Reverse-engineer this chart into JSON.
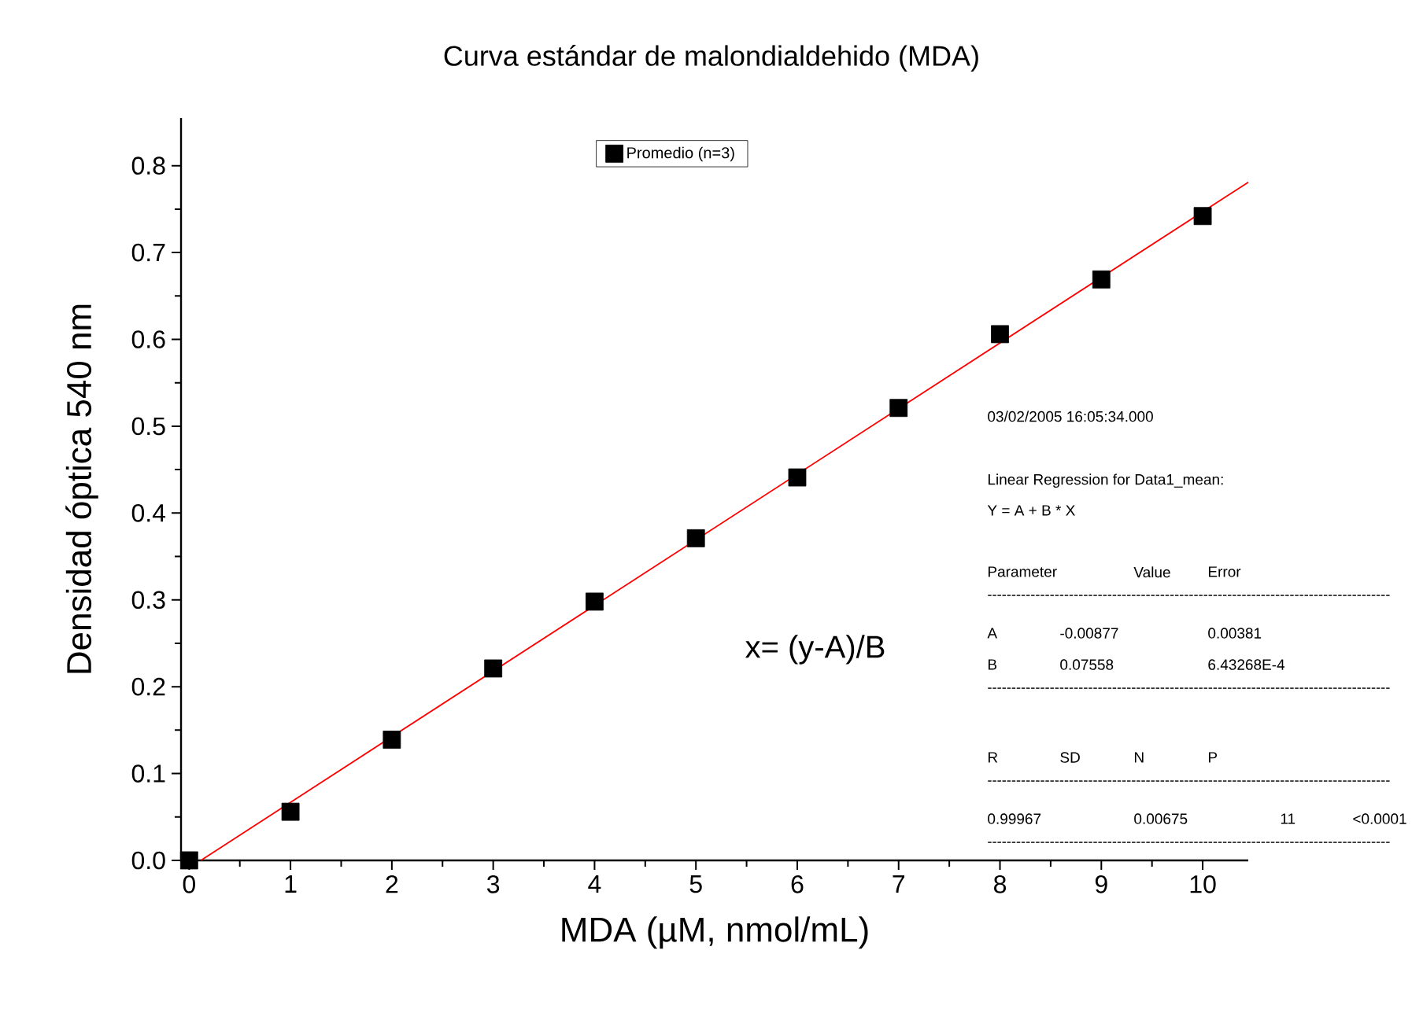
{
  "chart_data": {
    "type": "scatter",
    "title": "Curva estándar de malondialdehido (MDA)",
    "xlabel": "MDA (µM, nmol/mL)",
    "ylabel": "Densidad óptica 540 nm",
    "x": [
      0,
      1,
      2,
      3,
      4,
      5,
      6,
      7,
      8,
      9,
      10
    ],
    "series": [
      {
        "name": "Promedio (n=3)",
        "color": "#000000",
        "marker": "square",
        "values": [
          0,
          0.056,
          0.139,
          0.221,
          0.298,
          0.371,
          0.441,
          0.521,
          0.606,
          0.669,
          0.742
        ]
      },
      {
        "type": "line",
        "color": "#ff0000",
        "line_style": "solid",
        "x": [
          0.116,
          10.45
        ],
        "values": [
          0,
          0.781
        ]
      }
    ],
    "xlim": [
      -0.08,
      10.45
    ],
    "ylim": [
      0,
      0.855
    ],
    "xticks": [
      0,
      1,
      2,
      3,
      4,
      5,
      6,
      7,
      8,
      9,
      10
    ],
    "yticks": [
      {
        "value": 0,
        "label": "0.0"
      },
      0.1,
      0.2,
      0.3,
      0.4,
      0.5,
      0.6,
      0.7,
      0.8
    ],
    "legend": "top",
    "grid": false,
    "annotations": [
      "x= (y-A)/B",
      "03/02/2005 16:05:34.000",
      "Linear Regression for Data1_mean:",
      "Y = A + B * X",
      "Parameter",
      "Value",
      "Error",
      "------------------------------------------------------------------------------------",
      "A",
      "-0.00877",
      "0.00381",
      "B",
      "0.07558",
      "6.43268E-4",
      "------------------------------------------------------------------------------------",
      "R",
      "SD",
      "N",
      "P",
      "------------------------------------------------------------------------------------",
      "0.99967",
      "0.00675",
      "11",
      "<0.0001",
      "------------------------------------------------------------------------------------"
    ]
  }
}
